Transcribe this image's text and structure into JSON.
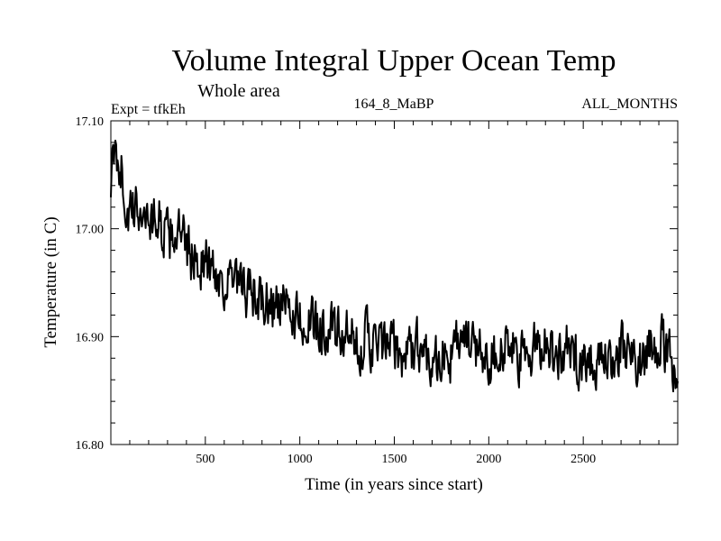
{
  "chart_data": {
    "type": "line",
    "title": "Volume Integral Upper Ocean Temp",
    "subtitle": "Whole area",
    "expt_label": "Expt = tfkEh",
    "run_label": "164_8_MaBP",
    "months_label": "ALL_MONTHS",
    "xlabel": "Time (in years since start)",
    "ylabel": "Temperature (in C)",
    "xlim": [
      0,
      3000
    ],
    "ylim": [
      16.8,
      17.1
    ],
    "xticks": [
      500,
      1000,
      1500,
      2000,
      2500
    ],
    "xtick_labels": [
      "500",
      "1000",
      "1500",
      "2000",
      "2500"
    ],
    "yticks": [
      16.8,
      16.9,
      17.0,
      17.1
    ],
    "ytick_labels": [
      "16.80",
      "16.90",
      "17.00",
      "17.10"
    ],
    "grid": false,
    "line_color": "#000000",
    "series": [
      {
        "x": [
          0,
          20,
          40,
          60,
          80,
          100,
          150,
          200,
          250,
          300,
          350,
          400,
          450,
          500,
          550,
          600,
          650,
          700,
          750,
          800,
          850,
          900,
          950,
          1000,
          1050,
          1100,
          1150,
          1200,
          1250,
          1300,
          1350,
          1400,
          1450,
          1500,
          1550,
          1600,
          1650,
          1700,
          1750,
          1800,
          1850,
          1900,
          1950,
          2000,
          2050,
          2100,
          2150,
          2200,
          2250,
          2300,
          2350,
          2400,
          2450,
          2500,
          2550,
          2600,
          2650,
          2700,
          2750,
          2800,
          2850,
          2900,
          2950,
          3000
        ],
        "y": [
          17.05,
          17.06,
          17.07,
          17.05,
          17.02,
          17.01,
          17.02,
          17.01,
          17.01,
          16.99,
          17.0,
          16.98,
          16.97,
          16.97,
          16.96,
          16.95,
          16.95,
          16.94,
          16.94,
          16.93,
          16.93,
          16.93,
          16.92,
          16.92,
          16.91,
          16.91,
          16.91,
          16.9,
          16.9,
          16.89,
          16.9,
          16.89,
          16.89,
          16.89,
          16.88,
          16.89,
          16.89,
          16.88,
          16.88,
          16.88,
          16.9,
          16.89,
          16.89,
          16.88,
          16.89,
          16.89,
          16.88,
          16.88,
          16.89,
          16.9,
          16.88,
          16.89,
          16.88,
          16.88,
          16.88,
          16.87,
          16.88,
          16.89,
          16.88,
          16.88,
          16.89,
          16.9,
          16.88,
          16.87
        ]
      }
    ]
  }
}
